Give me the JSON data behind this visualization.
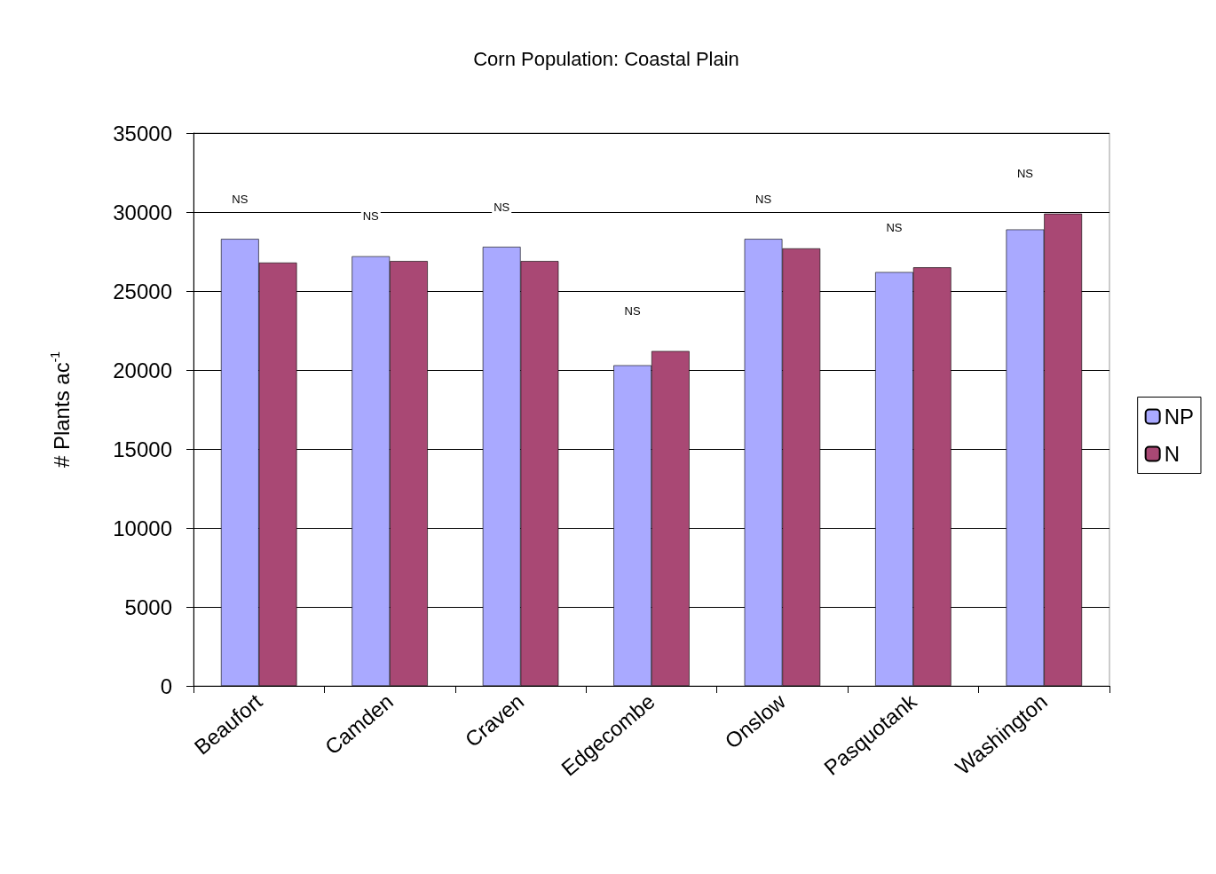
{
  "chart_data": {
    "type": "bar",
    "title": "Corn Population: Coastal Plain",
    "ylabel": "# Plants ac$^{-1}$",
    "categories": [
      "Beaufort",
      "Camden",
      "Craven",
      "Edgecombe",
      "Onslow",
      "Pasquotank",
      "Washington"
    ],
    "series": [
      {
        "name": "NP",
        "color": "#a9a9ff",
        "values": [
          28300,
          27200,
          27800,
          20300,
          28300,
          26200,
          28900
        ]
      },
      {
        "name": "N",
        "color": "#a94874",
        "values": [
          26800,
          26900,
          26900,
          21200,
          27700,
          26500,
          29900
        ]
      }
    ],
    "ylim": [
      0,
      35000
    ],
    "yticks": [
      0,
      5000,
      10000,
      15000,
      20000,
      25000,
      30000,
      35000
    ],
    "grid": "y",
    "legend": "right",
    "annotations": [
      "NS",
      "NS",
      "NS",
      "NS",
      "NS",
      "NS",
      "NS"
    ]
  }
}
